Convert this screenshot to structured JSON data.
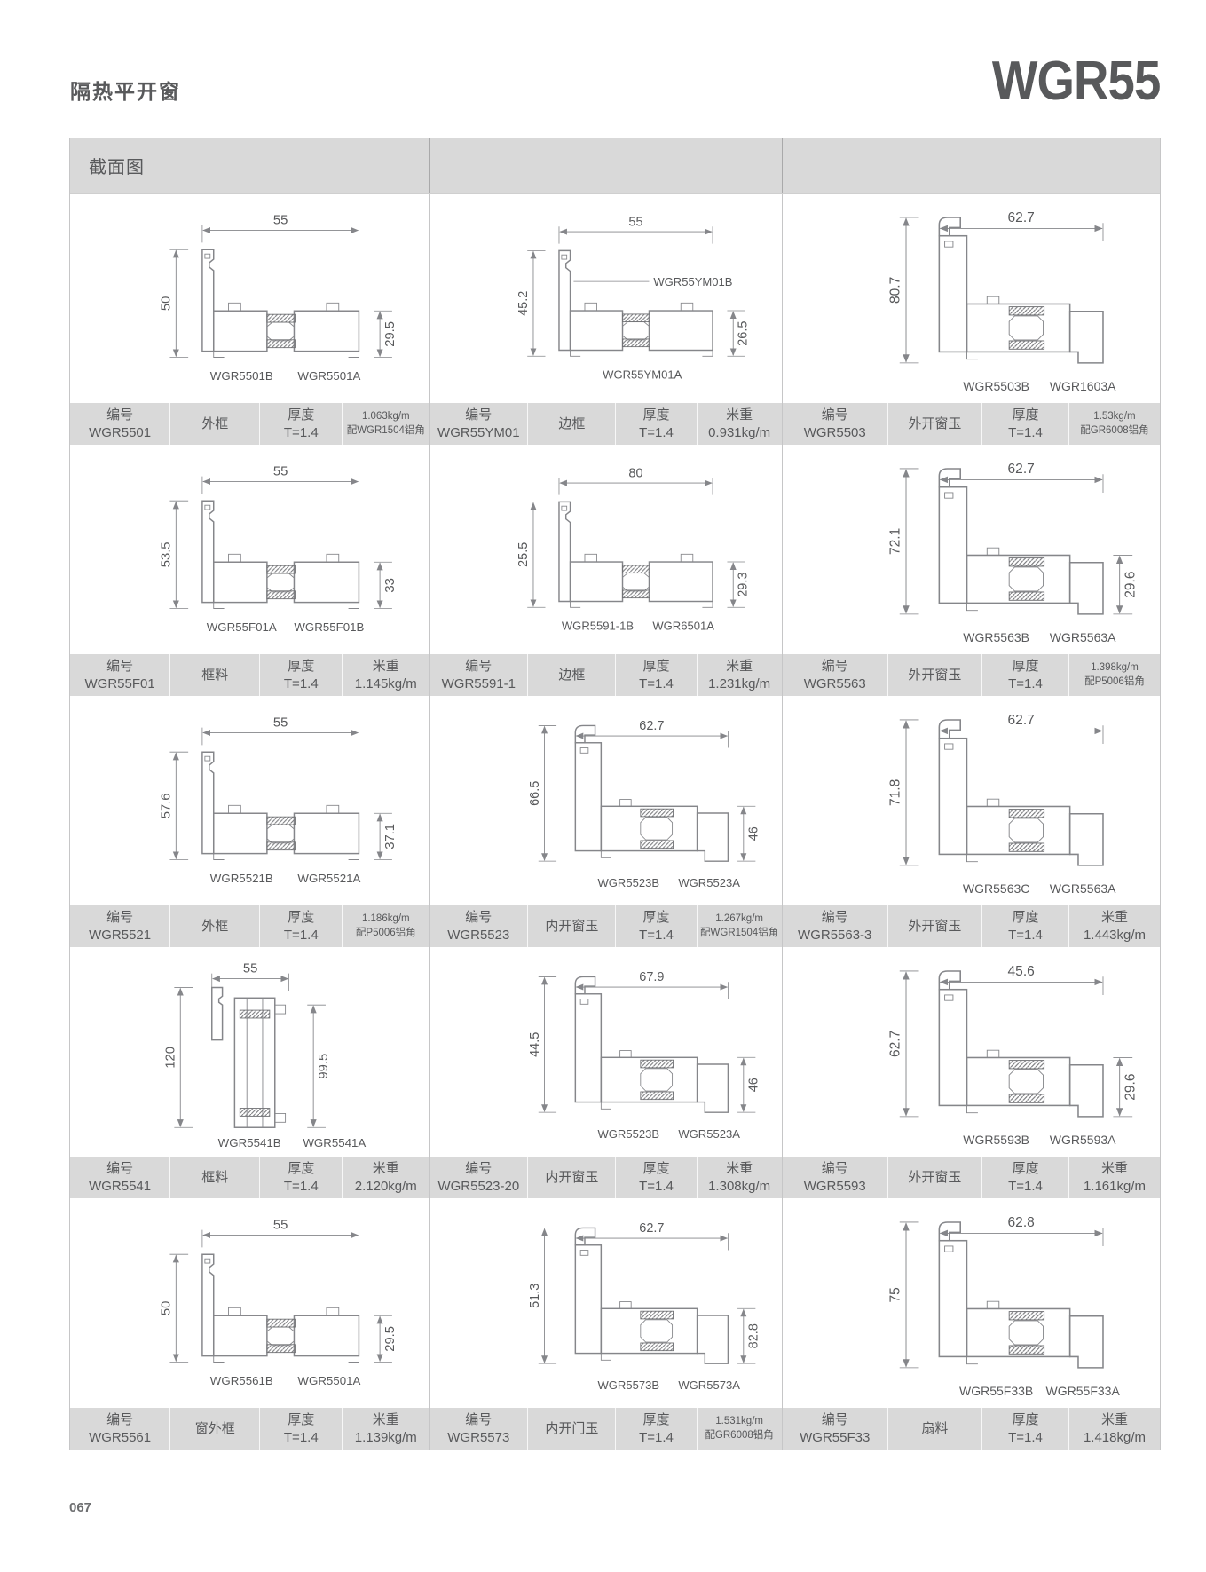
{
  "page": {
    "title_left": "隔热平开窗",
    "title_right": "WGR55",
    "section_header": "截面图",
    "page_number": "067"
  },
  "labels": {
    "code": "编号",
    "thickness": "厚度",
    "weight": "米重"
  },
  "colors": {
    "band_gray": "#d9d9d9",
    "line_gray": "#85868a",
    "text_gray": "#58595b"
  },
  "cells": [
    {
      "diagram": {
        "shape": "h",
        "dim_top": "55",
        "dim_left": "50",
        "dim_right": "29.5",
        "parts": [
          "WGR5501B",
          "WGR5501A"
        ],
        "inline_first_part": false
      },
      "info": {
        "code": "WGR5501",
        "name": "外框",
        "thickness": "T=1.4",
        "weight": "1.063kg/m",
        "note": "配WGR1504铝角"
      }
    },
    {
      "diagram": {
        "shape": "h",
        "dim_top": "55",
        "dim_left": "45.2",
        "dim_right": "26.5",
        "parts": [
          "WGR55YM01B",
          "WGR55YM01A"
        ],
        "inline_first_part": true
      },
      "info": {
        "code": "WGR55YM01",
        "name": "边框",
        "thickness": "T=1.4",
        "weight": "0.931kg/m"
      }
    },
    {
      "diagram": {
        "shape": "L",
        "dim_top": "62.7",
        "dim_left": "80.7",
        "dim_right": null,
        "parts": [
          "WGR5503B",
          "WGR1603A"
        ],
        "inline_first_part": false
      },
      "info": {
        "code": "WGR5503",
        "name": "外开窗玉",
        "thickness": "T=1.4",
        "weight": "1.53kg/m",
        "note": "配GR6008铝角"
      }
    },
    {
      "diagram": {
        "shape": "h",
        "dim_top": "55",
        "dim_left": "53.5",
        "dim_right": "33",
        "parts": [
          "WGR55F01A",
          "WGR55F01B"
        ],
        "inline_first_part": false
      },
      "info": {
        "code": "WGR55F01",
        "name": "框料",
        "thickness": "T=1.4",
        "weight": "1.145kg/m"
      }
    },
    {
      "diagram": {
        "shape": "h",
        "dim_top": "80",
        "dim_left": "25.5",
        "dim_right": "29.3",
        "parts": [
          "WGR5591-1B",
          "WGR6501A"
        ],
        "inline_first_part": false
      },
      "info": {
        "code": "WGR5591-1",
        "name": "边框",
        "thickness": "T=1.4",
        "weight": "1.231kg/m"
      }
    },
    {
      "diagram": {
        "shape": "L",
        "dim_top": "62.7",
        "dim_left": "72.1",
        "dim_right": "29.6",
        "parts": [
          "WGR5563B",
          "WGR5563A"
        ],
        "inline_first_part": false
      },
      "info": {
        "code": "WGR5563",
        "name": "外开窗玉",
        "thickness": "T=1.4",
        "weight": "1.398kg/m",
        "note": "配P5006铝角"
      }
    },
    {
      "diagram": {
        "shape": "h",
        "dim_top": "55",
        "dim_left": "57.6",
        "dim_right": "37.1",
        "parts": [
          "WGR5521B",
          "WGR5521A"
        ],
        "inline_first_part": false
      },
      "info": {
        "code": "WGR5521",
        "name": "外框",
        "thickness": "T=1.4",
        "weight": "1.186kg/m",
        "note": "配P5006铝角"
      }
    },
    {
      "diagram": {
        "shape": "L",
        "dim_top": "62.7",
        "dim_left": "66.5",
        "dim_right": "46",
        "parts": [
          "WGR5523B",
          "WGR5523A"
        ],
        "inline_first_part": false
      },
      "info": {
        "code": "WGR5523",
        "name": "内开窗玉",
        "thickness": "T=1.4",
        "weight": "1.267kg/m",
        "note": "配WGR1504铝角"
      }
    },
    {
      "diagram": {
        "shape": "L",
        "dim_top": "62.7",
        "dim_left": "71.8",
        "dim_right": null,
        "parts": [
          "WGR5563C",
          "WGR5563A"
        ],
        "inline_first_part": false
      },
      "info": {
        "code": "WGR5563-3",
        "name": "外开窗玉",
        "thickness": "T=1.4",
        "weight": "1.443kg/m"
      }
    },
    {
      "diagram": {
        "shape": "v",
        "dim_top": "55",
        "dim_left": "120",
        "dim_right": "99.5",
        "parts": [
          "WGR5541B",
          "WGR5541A"
        ],
        "inline_first_part": false
      },
      "info": {
        "code": "WGR5541",
        "name": "框料",
        "thickness": "T=1.4",
        "weight": "2.120kg/m"
      }
    },
    {
      "diagram": {
        "shape": "L",
        "dim_top": "67.9",
        "dim_left": "44.5",
        "dim_right": "46",
        "parts": [
          "WGR5523B",
          "WGR5523A"
        ],
        "inline_first_part": false
      },
      "info": {
        "code": "WGR5523-20",
        "name": "内开窗玉",
        "thickness": "T=1.4",
        "weight": "1.308kg/m"
      }
    },
    {
      "diagram": {
        "shape": "L",
        "dim_top": "45.6",
        "dim_left": "62.7",
        "dim_right": "29.6",
        "parts": [
          "WGR5593B",
          "WGR5593A"
        ],
        "inline_first_part": false
      },
      "info": {
        "code": "WGR5593",
        "name": "外开窗玉",
        "thickness": "T=1.4",
        "weight": "1.161kg/m"
      }
    },
    {
      "diagram": {
        "shape": "h",
        "dim_top": "55",
        "dim_left": "50",
        "dim_right": "29.5",
        "parts": [
          "WGR5561B",
          "WGR5501A"
        ],
        "inline_first_part": false
      },
      "info": {
        "code": "WGR5561",
        "name": "窗外框",
        "thickness": "T=1.4",
        "weight": "1.139kg/m"
      }
    },
    {
      "diagram": {
        "shape": "L",
        "dim_top": "62.7",
        "dim_left": "51.3",
        "dim_right": "82.8",
        "parts": [
          "WGR5573B",
          "WGR5573A"
        ],
        "inline_first_part": false
      },
      "info": {
        "code": "WGR5573",
        "name": "内开门玉",
        "thickness": "T=1.4",
        "weight": "1.531kg/m",
        "note": "配GR6008铝角"
      }
    },
    {
      "diagram": {
        "shape": "L",
        "dim_top": "62.8",
        "dim_left": "75",
        "dim_right": null,
        "parts": [
          "WGR55F33B",
          "WGR55F33A"
        ],
        "inline_first_part": false
      },
      "info": {
        "code": "WGR55F33",
        "name": "扇料",
        "thickness": "T=1.4",
        "weight": "1.418kg/m"
      }
    }
  ]
}
